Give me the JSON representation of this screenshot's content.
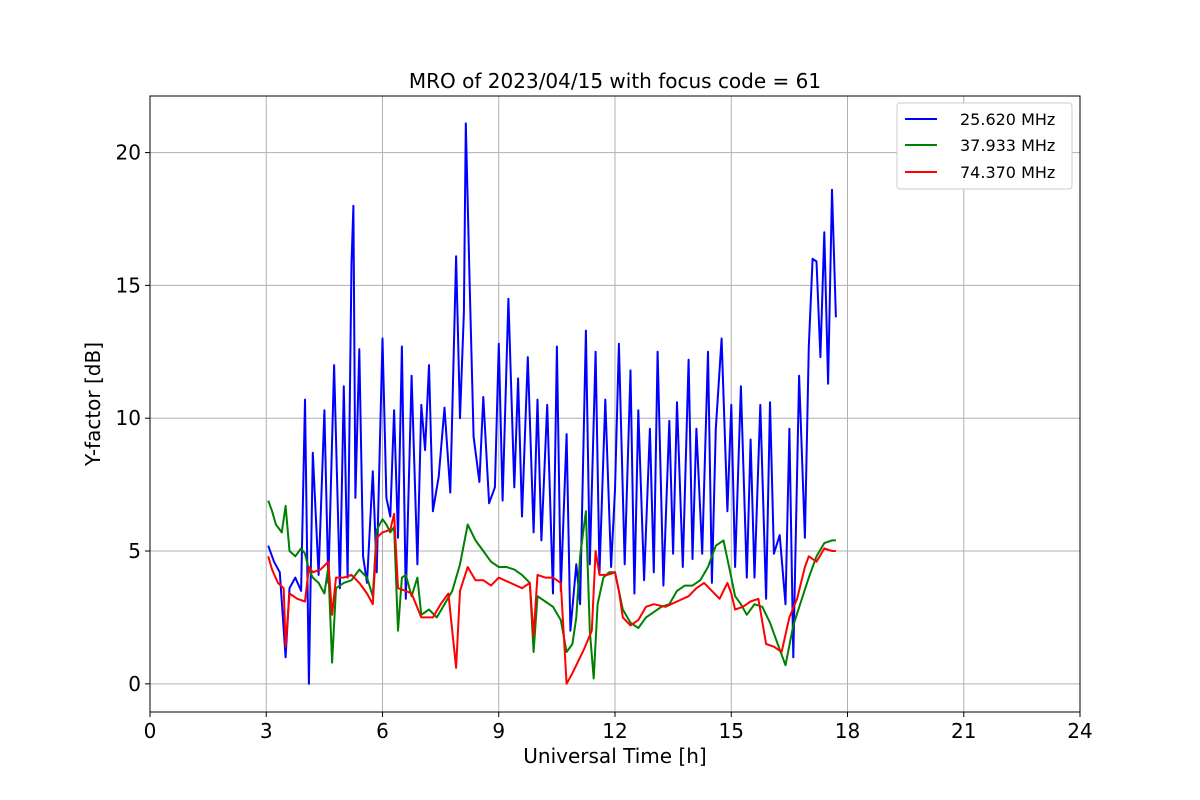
{
  "chart_data": {
    "type": "line",
    "title": "MRO of 2023/04/15 with focus code = 61",
    "xlabel": "Universal Time [h]",
    "ylabel": "Y-factor [dB]",
    "xlim": [
      0,
      24
    ],
    "ylim": [
      -1.06,
      22.13
    ],
    "xticks": [
      0,
      3,
      6,
      9,
      12,
      15,
      18,
      21,
      24
    ],
    "yticks": [
      0,
      5,
      10,
      15,
      20
    ],
    "grid": true,
    "legend_position": "top-right",
    "series": [
      {
        "name": "25.620 MHz",
        "color": "#0000ff",
        "x": [
          3.05,
          3.2,
          3.35,
          3.5,
          3.6,
          3.75,
          3.9,
          4.0,
          4.1,
          4.2,
          4.35,
          4.5,
          4.6,
          4.75,
          4.9,
          5.0,
          5.1,
          5.2,
          5.25,
          5.3,
          5.4,
          5.5,
          5.6,
          5.75,
          5.85,
          6.0,
          6.1,
          6.2,
          6.3,
          6.4,
          6.5,
          6.6,
          6.75,
          6.9,
          7.0,
          7.1,
          7.2,
          7.3,
          7.45,
          7.6,
          7.75,
          7.9,
          8.0,
          8.1,
          8.15,
          8.25,
          8.35,
          8.5,
          8.6,
          8.75,
          8.9,
          9.0,
          9.1,
          9.25,
          9.4,
          9.5,
          9.6,
          9.75,
          9.9,
          10.0,
          10.1,
          10.25,
          10.4,
          10.5,
          10.6,
          10.75,
          10.85,
          11.0,
          11.1,
          11.25,
          11.35,
          11.5,
          11.6,
          11.75,
          11.9,
          12.0,
          12.1,
          12.25,
          12.4,
          12.5,
          12.6,
          12.75,
          12.9,
          13.0,
          13.1,
          13.25,
          13.4,
          13.5,
          13.6,
          13.75,
          13.9,
          14.0,
          14.1,
          14.25,
          14.4,
          14.5,
          14.6,
          14.75,
          14.9,
          15.0,
          15.1,
          15.25,
          15.4,
          15.5,
          15.6,
          15.75,
          15.9,
          16.0,
          16.1,
          16.25,
          16.4,
          16.5,
          16.6,
          16.75,
          16.9,
          17.0,
          17.1,
          17.2,
          17.3,
          17.4,
          17.5,
          17.6,
          17.7
        ],
        "y": [
          5.2,
          4.6,
          4.2,
          1.0,
          3.6,
          4.0,
          3.5,
          10.7,
          0.0,
          8.7,
          4.1,
          10.3,
          3.8,
          12.0,
          3.6,
          11.2,
          4.0,
          15.8,
          18.0,
          7.0,
          12.6,
          4.8,
          3.8,
          8.0,
          4.2,
          13.0,
          7.0,
          6.3,
          10.3,
          5.5,
          12.7,
          3.2,
          11.6,
          4.5,
          10.5,
          8.8,
          12.0,
          6.5,
          7.8,
          10.4,
          7.2,
          16.1,
          10.0,
          14.0,
          21.1,
          15.0,
          9.3,
          7.6,
          10.8,
          6.8,
          7.4,
          12.8,
          6.9,
          14.5,
          7.4,
          11.5,
          6.3,
          12.3,
          5.7,
          10.7,
          5.4,
          10.5,
          3.4,
          12.7,
          3.5,
          9.4,
          2.0,
          4.5,
          3.0,
          13.3,
          4.5,
          12.5,
          4.2,
          10.7,
          4.4,
          7.3,
          12.8,
          4.5,
          11.8,
          3.4,
          10.3,
          3.9,
          9.6,
          4.2,
          12.5,
          3.7,
          9.9,
          4.9,
          10.6,
          4.4,
          12.2,
          4.7,
          9.6,
          4.9,
          12.5,
          3.8,
          9.6,
          13.0,
          6.5,
          10.5,
          4.4,
          11.2,
          4.0,
          9.2,
          4.0,
          10.5,
          3.2,
          10.6,
          4.9,
          5.6,
          3.0,
          9.6,
          1.0,
          11.6,
          5.5,
          12.7,
          16.0,
          15.9,
          12.3,
          17.0,
          11.3,
          18.6,
          13.8
        ]
      },
      {
        "name": "37.933 MHz",
        "color": "#008000",
        "x": [
          3.05,
          3.15,
          3.25,
          3.4,
          3.5,
          3.6,
          3.75,
          3.9,
          4.0,
          4.1,
          4.2,
          4.35,
          4.5,
          4.6,
          4.7,
          4.8,
          4.9,
          5.0,
          5.2,
          5.4,
          5.6,
          5.75,
          5.85,
          6.0,
          6.1,
          6.2,
          6.3,
          6.4,
          6.5,
          6.6,
          6.75,
          6.9,
          7.0,
          7.2,
          7.4,
          7.6,
          7.8,
          8.0,
          8.2,
          8.4,
          8.6,
          8.8,
          9.0,
          9.2,
          9.4,
          9.6,
          9.8,
          9.9,
          10.0,
          10.2,
          10.4,
          10.6,
          10.75,
          10.9,
          11.0,
          11.1,
          11.25,
          11.35,
          11.45,
          11.55,
          11.7,
          11.85,
          12.0,
          12.2,
          12.4,
          12.6,
          12.8,
          13.0,
          13.2,
          13.4,
          13.6,
          13.8,
          14.0,
          14.2,
          14.4,
          14.6,
          14.8,
          15.0,
          15.1,
          15.25,
          15.4,
          15.6,
          15.8,
          16.0,
          16.2,
          16.4,
          16.6,
          16.8,
          17.0,
          17.2,
          17.4,
          17.6,
          17.7
        ],
        "y": [
          6.9,
          6.5,
          6.0,
          5.7,
          6.7,
          5.0,
          4.8,
          5.1,
          4.9,
          4.3,
          4.0,
          3.8,
          3.4,
          4.4,
          0.8,
          3.6,
          3.7,
          3.8,
          3.9,
          4.3,
          4.0,
          3.3,
          5.8,
          6.2,
          6.0,
          5.7,
          5.9,
          2.0,
          4.0,
          4.1,
          3.3,
          4.0,
          2.6,
          2.8,
          2.5,
          3.0,
          3.5,
          4.5,
          6.0,
          5.4,
          5.0,
          4.6,
          4.4,
          4.4,
          4.3,
          4.1,
          3.8,
          1.2,
          3.3,
          3.1,
          2.9,
          2.4,
          1.2,
          1.5,
          2.5,
          4.8,
          6.5,
          2.0,
          0.2,
          3.0,
          4.0,
          4.2,
          4.2,
          2.8,
          2.3,
          2.1,
          2.5,
          2.7,
          2.9,
          3.0,
          3.5,
          3.7,
          3.7,
          3.9,
          4.4,
          5.2,
          5.4,
          4.0,
          3.3,
          3.0,
          2.6,
          3.0,
          2.9,
          2.3,
          1.5,
          0.7,
          2.2,
          3.1,
          4.0,
          4.8,
          5.3,
          5.4,
          5.4
        ]
      },
      {
        "name": "74.370 MHz",
        "color": "#ff0000",
        "x": [
          3.05,
          3.15,
          3.3,
          3.45,
          3.5,
          3.6,
          3.8,
          4.0,
          4.1,
          4.2,
          4.4,
          4.6,
          4.7,
          4.8,
          5.0,
          5.2,
          5.4,
          5.6,
          5.75,
          5.85,
          6.0,
          6.2,
          6.3,
          6.4,
          6.6,
          6.75,
          7.0,
          7.3,
          7.5,
          7.7,
          7.9,
          8.0,
          8.2,
          8.4,
          8.6,
          8.8,
          9.0,
          9.3,
          9.6,
          9.8,
          9.9,
          10.0,
          10.2,
          10.4,
          10.6,
          10.75,
          10.9,
          11.0,
          11.2,
          11.4,
          11.5,
          11.6,
          11.8,
          12.0,
          12.1,
          12.2,
          12.4,
          12.6,
          12.8,
          13.0,
          13.3,
          13.6,
          13.9,
          14.1,
          14.3,
          14.5,
          14.7,
          14.9,
          15.0,
          15.1,
          15.3,
          15.5,
          15.7,
          15.9,
          16.1,
          16.3,
          16.5,
          16.7,
          16.9,
          17.0,
          17.2,
          17.4,
          17.6,
          17.7
        ],
        "y": [
          4.8,
          4.3,
          3.8,
          3.6,
          1.4,
          3.4,
          3.2,
          3.1,
          4.4,
          4.2,
          4.3,
          4.6,
          2.6,
          4.0,
          4.0,
          4.1,
          3.8,
          3.4,
          3.0,
          5.5,
          5.7,
          5.8,
          6.4,
          3.6,
          3.5,
          3.4,
          2.5,
          2.5,
          3.0,
          3.4,
          0.6,
          3.5,
          4.4,
          3.9,
          3.9,
          3.7,
          4.0,
          3.8,
          3.6,
          3.8,
          1.8,
          4.1,
          4.0,
          4.0,
          3.8,
          0.0,
          0.4,
          0.7,
          1.3,
          2.0,
          5.0,
          4.1,
          4.1,
          4.2,
          3.5,
          2.5,
          2.2,
          2.4,
          2.9,
          3.0,
          2.9,
          3.1,
          3.3,
          3.6,
          3.8,
          3.5,
          3.2,
          3.8,
          3.4,
          2.8,
          2.9,
          3.1,
          3.2,
          1.5,
          1.4,
          1.2,
          2.5,
          3.2,
          4.4,
          4.8,
          4.6,
          5.1,
          5.0,
          5.0
        ]
      }
    ]
  }
}
